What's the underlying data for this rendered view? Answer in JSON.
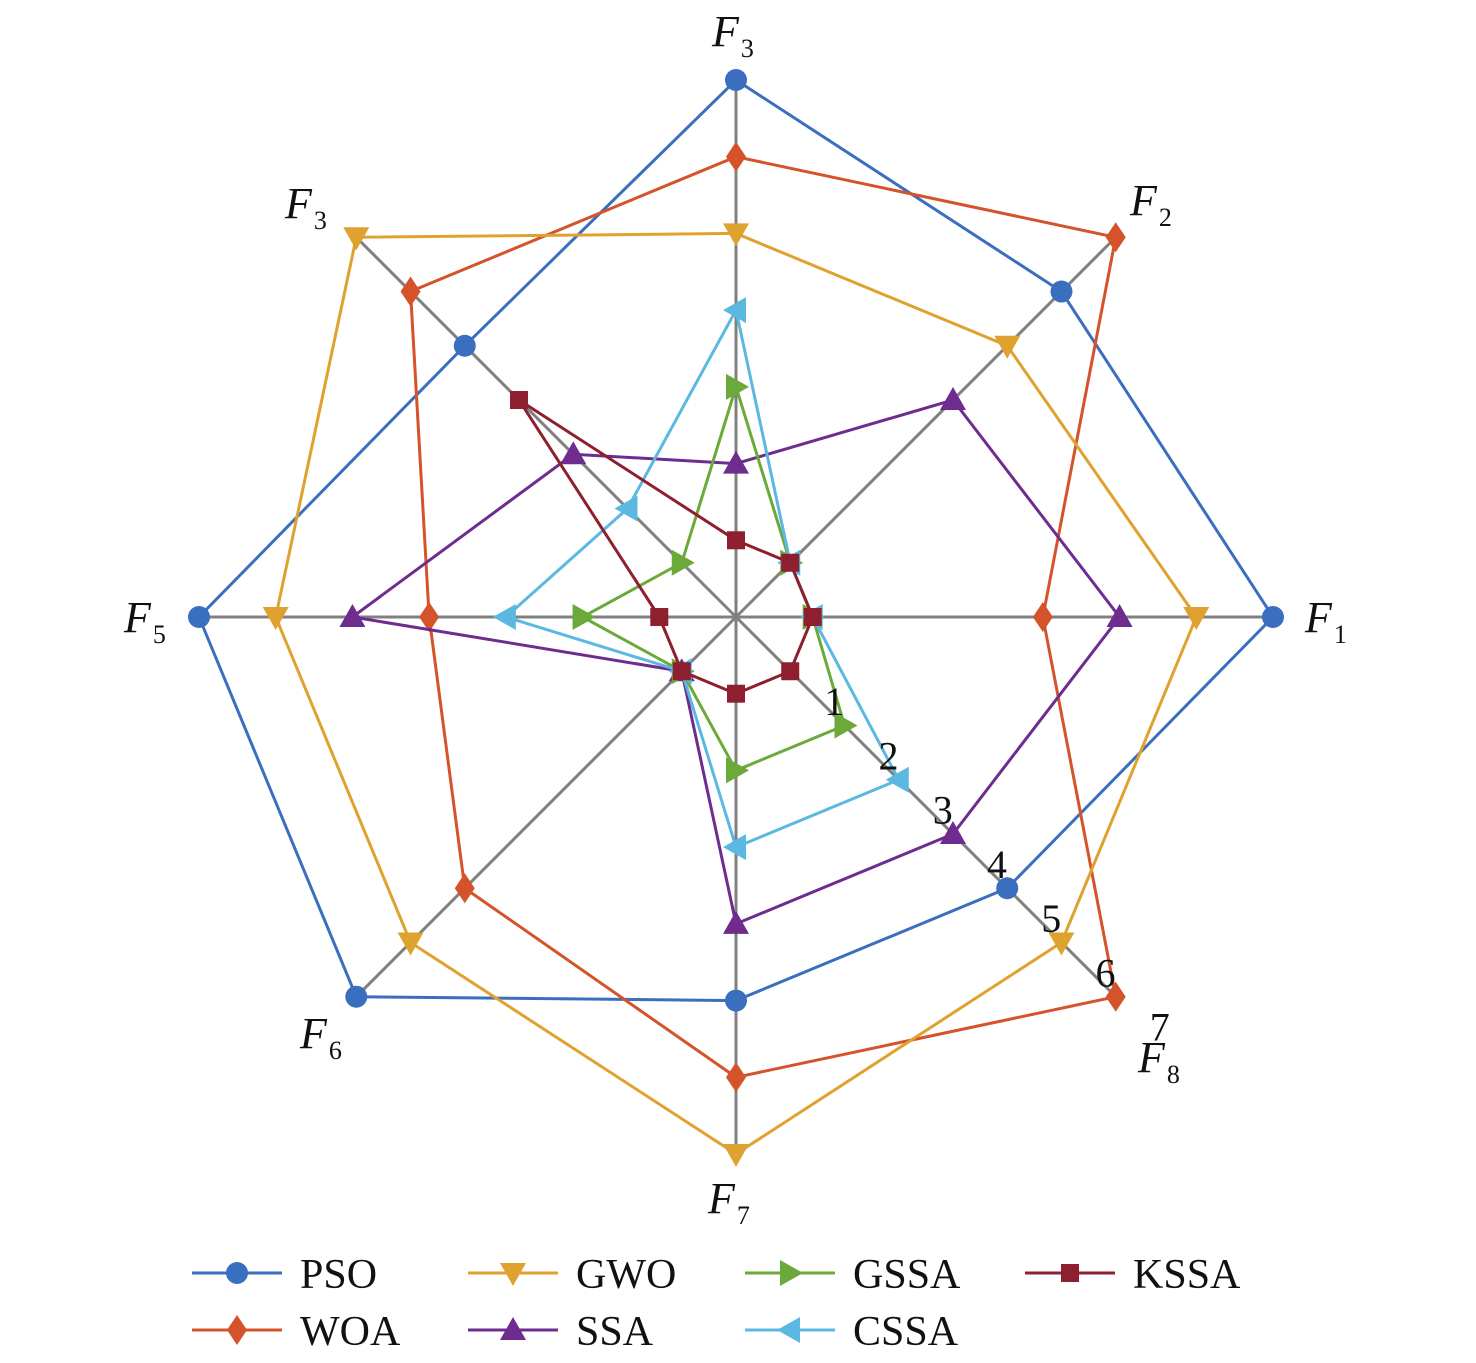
{
  "chart_data": {
    "type": "radar",
    "axes": [
      {
        "label": "F",
        "sub": "1"
      },
      {
        "label": "F",
        "sub": "2"
      },
      {
        "label": "F",
        "sub": "3"
      },
      {
        "label": "F",
        "sub": "3"
      },
      {
        "label": "F",
        "sub": "5"
      },
      {
        "label": "F",
        "sub": "6"
      },
      {
        "label": "F",
        "sub": "7"
      },
      {
        "label": "F",
        "sub": "8"
      }
    ],
    "range": [
      0,
      7
    ],
    "tick_labels": [
      "1",
      "2",
      "3",
      "4",
      "5",
      "6",
      "7"
    ],
    "legend_placement": "bottom",
    "series": [
      {
        "name": "PSO",
        "color": "#3A6FBF",
        "marker": "circle",
        "values": [
          7,
          6,
          7,
          5,
          7,
          7,
          5,
          5
        ]
      },
      {
        "name": "WOA",
        "color": "#D4532A",
        "marker": "diamond",
        "values": [
          4,
          7,
          6,
          6,
          4,
          5,
          6,
          7
        ]
      },
      {
        "name": "GWO",
        "color": "#E0A22E",
        "marker": "triangle-down",
        "values": [
          6,
          5,
          5,
          7,
          6,
          6,
          7,
          6
        ]
      },
      {
        "name": "SSA",
        "color": "#6E2C8F",
        "marker": "triangle-up",
        "values": [
          5,
          4,
          2,
          3,
          5,
          1,
          4,
          4
        ]
      },
      {
        "name": "GSSA",
        "color": "#6BAA3A",
        "marker": "triangle-right",
        "values": [
          1,
          1,
          3,
          1,
          2,
          1,
          2,
          2
        ]
      },
      {
        "name": "CSSA",
        "color": "#5BB8E0",
        "marker": "triangle-left",
        "values": [
          1,
          1,
          4,
          2,
          3,
          1,
          3,
          3
        ]
      },
      {
        "name": "KSSA",
        "color": "#8E1F2E",
        "marker": "square",
        "values": [
          1,
          1,
          1,
          4,
          1,
          1,
          1,
          1
        ]
      }
    ],
    "legend_order": [
      "PSO",
      "GWO",
      "GSSA",
      "KSSA",
      "WOA",
      "SSA",
      "CSSA"
    ]
  }
}
